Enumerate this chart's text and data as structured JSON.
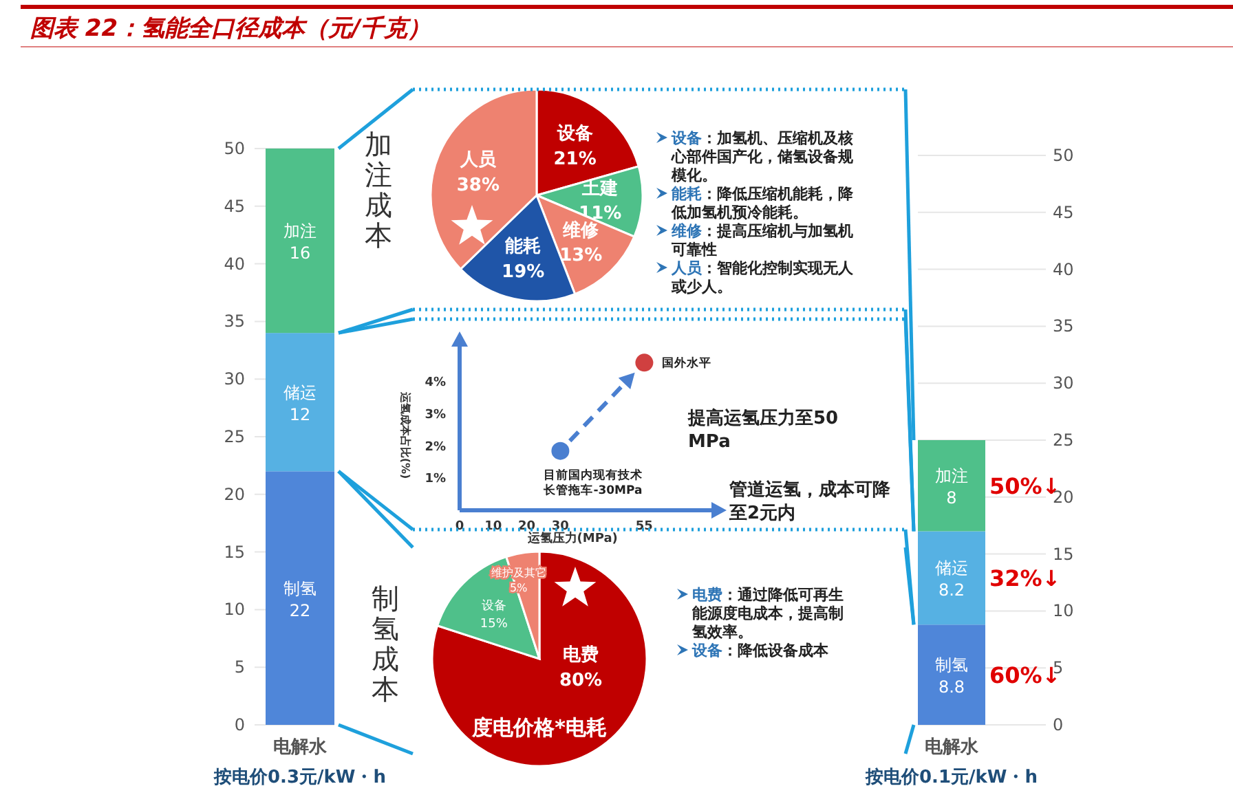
{
  "chart_data": [
    {
      "type": "bar",
      "title": "图表 22：氢能全口径成本（元/千克）",
      "categories": [
        "电解水"
      ],
      "xlabel": "按电价0.3元/kW・h",
      "stacked": true,
      "data_labels": true,
      "grid": "y",
      "ylim": [
        0,
        50
      ],
      "yticks": [
        0,
        5,
        10,
        15,
        20,
        25,
        30,
        35,
        40,
        45,
        50
      ],
      "series": [
        {
          "name": "制氢",
          "color": "#4f86d9",
          "values": [
            22
          ]
        },
        {
          "name": "储运",
          "color": "#56b1e3",
          "values": [
            12
          ]
        },
        {
          "name": "加注",
          "color": "#4fc08a",
          "values": [
            16
          ]
        }
      ]
    },
    {
      "type": "pie",
      "title": "加注成本",
      "categories": [
        "设备",
        "土建",
        "维修",
        "能耗",
        "人员"
      ],
      "values": [
        21,
        11,
        13,
        19,
        38
      ],
      "value_labels": [
        "21%",
        "11%",
        "13%",
        "19%",
        "38%"
      ],
      "colors": [
        "#c00000",
        "#4fc08a",
        "#ee8270",
        "#1f55a8",
        "#ee8270"
      ],
      "annotations": [
        "**设备**：加氢机、压缩机及核心部件国产化，储氢设备规模化。",
        "**能耗**：降低压缩机能耗，降低加氢机预冷能耗。",
        "**维修**：提高压缩机与加氢机可靠性",
        "**人员**：智能化控制实现无人或少人。"
      ]
    },
    {
      "type": "scatter",
      "xlabel": "运氢压力(MPa)",
      "ylabel": "运氢成本占比(%)",
      "xlim": [
        0,
        75
      ],
      "ylim": [
        0,
        5.1
      ],
      "xticks": [
        0,
        10,
        20,
        30,
        55
      ],
      "yticks": [
        {
          "value": 1,
          "label": "1%"
        },
        {
          "value": 2,
          "label": "2%"
        },
        {
          "value": 3,
          "label": "3%"
        },
        {
          "value": 4,
          "label": "4%"
        }
      ],
      "marker": "circle",
      "series": [
        {
          "name": "目前国内现有技术长管拖车-30MPa",
          "color": "#4a7fd0",
          "x": [
            30
          ],
          "values": [
            1.85
          ]
        },
        {
          "name": "国外水平",
          "color": "#d04040",
          "x": [
            55
          ],
          "values": [
            4.6
          ]
        }
      ],
      "annotations": [
        "提高运氢压力至50MPa",
        "管道运氢，成本可降至2元内"
      ]
    },
    {
      "type": "pie",
      "title": "制氢成本",
      "categories": [
        "电费",
        "设备",
        "维护及其它"
      ],
      "values": [
        80,
        15,
        5
      ],
      "value_labels": [
        "80%",
        "15%",
        "5%"
      ],
      "colors": [
        "#c00000",
        "#4fc08a",
        "#ee8270"
      ],
      "annotations": [
        "度电价格*电耗",
        "**电费**：通过降低可再生能源度电成本，提高制氢效率。",
        "**设备**：降低设备成本"
      ]
    },
    {
      "type": "bar",
      "categories": [
        "电解水"
      ],
      "xlabel": "按电价0.1元/kW・h",
      "stacked": true,
      "data_labels": true,
      "grid": "y",
      "ylim": [
        0,
        50
      ],
      "yticks": [
        0,
        5,
        10,
        15,
        20,
        25,
        30,
        35,
        40,
        45,
        50
      ],
      "series": [
        {
          "name": "制氢",
          "color": "#4f86d9",
          "values": [
            8.8
          ]
        },
        {
          "name": "储运",
          "color": "#56b1e3",
          "values": [
            8.2
          ]
        },
        {
          "name": "加注",
          "color": "#4fc08a",
          "values": [
            8
          ]
        }
      ],
      "annotations": [
        "50%↓",
        "32%↓",
        "60%↓"
      ]
    }
  ]
}
